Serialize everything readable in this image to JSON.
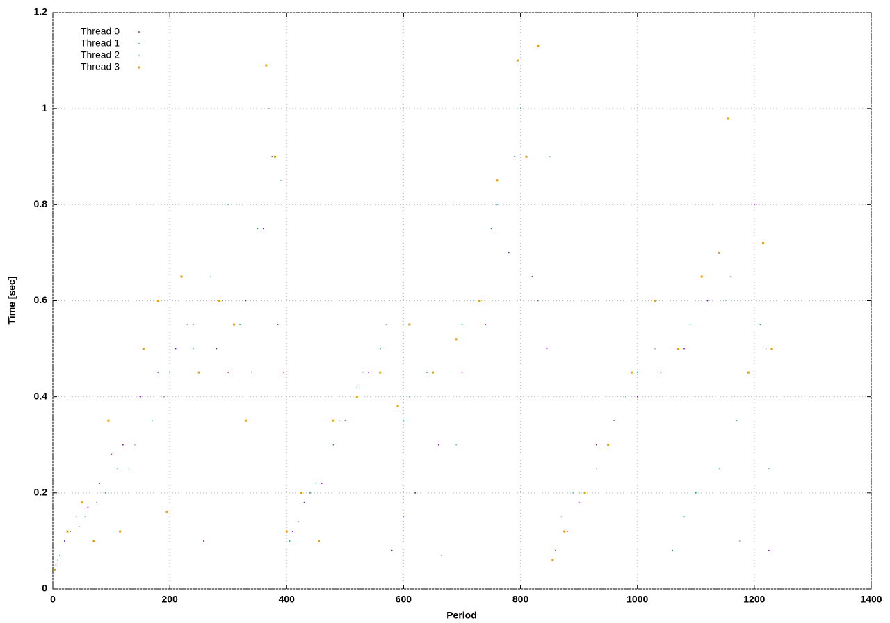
{
  "chart_data": {
    "type": "scatter",
    "x_label": "Period",
    "y_label": "Time [sec]",
    "xlim": [
      0,
      1400
    ],
    "xticks": [
      0,
      200,
      400,
      600,
      800,
      1000,
      1200,
      1400
    ],
    "ylim": [
      0,
      1.2
    ],
    "yticks": [
      0,
      0.2,
      0.4,
      0.6,
      0.8,
      1,
      1.2
    ],
    "grid": true,
    "legend": "top-left",
    "series": [
      {
        "name": "Thread 0",
        "color": "#9400d3",
        "x": [
          5,
          20,
          40,
          60,
          80,
          100,
          120,
          150,
          180,
          210,
          240,
          258,
          280,
          300,
          330,
          360,
          385,
          395,
          410,
          430,
          460,
          500,
          540,
          580,
          600,
          620,
          660,
          700,
          740,
          780,
          820,
          845,
          860,
          880,
          900,
          930,
          960,
          1000,
          1040,
          1080,
          1120,
          1160,
          1200,
          1225
        ],
        "values": [
          0.05,
          0.1,
          0.15,
          0.17,
          0.22,
          0.28,
          0.3,
          0.4,
          0.45,
          0.5,
          0.55,
          0.1,
          0.5,
          0.45,
          0.6,
          0.75,
          0.55,
          0.45,
          0.12,
          0.18,
          0.22,
          0.35,
          0.45,
          0.08,
          0.15,
          0.2,
          0.3,
          0.45,
          0.55,
          0.7,
          0.65,
          0.5,
          0.08,
          0.12,
          0.18,
          0.3,
          0.35,
          0.4,
          0.45,
          0.5,
          0.6,
          0.65,
          0.8,
          0.08
        ]
      },
      {
        "name": "Thread 1",
        "color": "#009e73",
        "x": [
          8,
          30,
          55,
          90,
          130,
          170,
          200,
          240,
          290,
          320,
          350,
          375,
          405,
          440,
          480,
          520,
          560,
          600,
          640,
          700,
          750,
          790,
          830,
          870,
          900,
          950,
          1000,
          1060,
          1080,
          1100,
          1140,
          1170,
          1210,
          1225
        ],
        "values": [
          0.06,
          0.12,
          0.15,
          0.2,
          0.25,
          0.35,
          0.45,
          0.5,
          0.6,
          0.55,
          0.75,
          0.9,
          0.1,
          0.2,
          0.3,
          0.42,
          0.5,
          0.35,
          0.45,
          0.55,
          0.75,
          0.9,
          0.6,
          0.15,
          0.2,
          0.3,
          0.45,
          0.08,
          0.15,
          0.2,
          0.25,
          0.35,
          0.55,
          0.25
        ]
      },
      {
        "name": "Thread 2",
        "color": "#56b4e9",
        "x": [
          12,
          45,
          75,
          110,
          140,
          190,
          230,
          270,
          300,
          340,
          370,
          390,
          420,
          450,
          490,
          530,
          570,
          610,
          665,
          690,
          720,
          760,
          800,
          850,
          890,
          930,
          980,
          1030,
          1090,
          1150,
          1175,
          1200,
          1220
        ],
        "values": [
          0.07,
          0.13,
          0.18,
          0.25,
          0.3,
          0.4,
          0.55,
          0.65,
          0.8,
          0.45,
          1.0,
          0.85,
          0.14,
          0.22,
          0.35,
          0.45,
          0.55,
          0.4,
          0.07,
          0.3,
          0.6,
          0.8,
          1.0,
          0.9,
          0.2,
          0.25,
          0.4,
          0.5,
          0.55,
          0.6,
          0.1,
          0.15,
          0.5
        ]
      },
      {
        "name": "Thread 3",
        "color": "#e69f00",
        "x": [
          3,
          25,
          50,
          70,
          95,
          115,
          155,
          180,
          195,
          220,
          250,
          285,
          310,
          330,
          365,
          380,
          400,
          425,
          455,
          480,
          520,
          560,
          590,
          610,
          650,
          690,
          730,
          760,
          795,
          810,
          830,
          855,
          875,
          910,
          950,
          990,
          1030,
          1070,
          1110,
          1140,
          1155,
          1190,
          1215,
          1230
        ],
        "values": [
          0.04,
          0.12,
          0.18,
          0.1,
          0.35,
          0.12,
          0.5,
          0.6,
          0.16,
          0.65,
          0.45,
          0.6,
          0.55,
          0.35,
          1.09,
          0.9,
          0.12,
          0.2,
          0.1,
          0.35,
          0.4,
          0.45,
          0.38,
          0.55,
          0.45,
          0.52,
          0.6,
          0.85,
          1.1,
          0.9,
          1.13,
          0.06,
          0.12,
          0.2,
          0.3,
          0.45,
          0.6,
          0.5,
          0.65,
          0.7,
          0.98,
          0.45,
          0.72,
          0.5
        ]
      }
    ]
  }
}
